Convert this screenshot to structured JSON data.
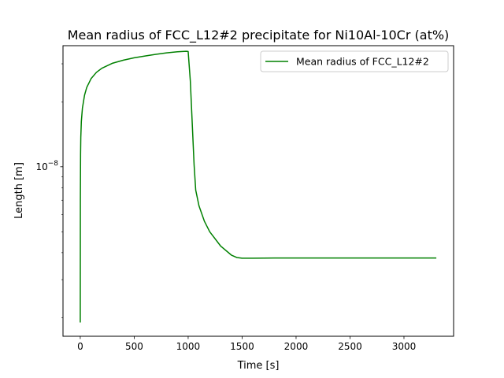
{
  "chart_data": {
    "type": "line",
    "title": "Mean radius of FCC_L12#2 precipitate for Ni10Al-10Cr (at%)",
    "xlabel": "Time [s]",
    "ylabel": "Length [m]",
    "xlim": [
      -160,
      3460
    ],
    "ylim": [
      1.64e-09,
      3.64e-08
    ],
    "yscale": "log",
    "x_ticks": [
      0,
      500,
      1000,
      1500,
      2000,
      2500,
      3000
    ],
    "x_tick_labels": [
      "0",
      "500",
      "1000",
      "1500",
      "2000",
      "2500",
      "3000"
    ],
    "y_major_ticks": [
      1e-08
    ],
    "y_tick_label_base": "10",
    "y_tick_label_exp": "−8",
    "y_minor_ticks": [
      2e-09,
      3e-09,
      4e-09,
      5e-09,
      6e-09,
      7e-09,
      8e-09,
      9e-09,
      2e-08,
      3e-08
    ],
    "grid": false,
    "legend_position": "upper right",
    "series": [
      {
        "name": "Mean radius of FCC_L12#2",
        "color": "#008000",
        "x": [
          0,
          1,
          3,
          5,
          10,
          20,
          40,
          60,
          100,
          150,
          200,
          300,
          400,
          500,
          600,
          700,
          800,
          900,
          980,
          1000,
          1020,
          1040,
          1055,
          1070,
          1100,
          1150,
          1200,
          1300,
          1400,
          1450,
          1500,
          1600,
          1800,
          2000,
          2500,
          3000,
          3300
        ],
        "y": [
          1.9e-09,
          7e-09,
          1.15e-08,
          1.37e-08,
          1.62e-08,
          1.87e-08,
          2.15e-08,
          2.33e-08,
          2.56e-08,
          2.74e-08,
          2.86e-08,
          3.02e-08,
          3.12e-08,
          3.2e-08,
          3.26e-08,
          3.32e-08,
          3.37e-08,
          3.41e-08,
          3.43e-08,
          3.42e-08,
          2.5e-08,
          1.5e-08,
          1.02e-08,
          7.8e-09,
          6.6e-09,
          5.6e-09,
          5e-09,
          4.3e-09,
          3.9e-09,
          3.8e-09,
          3.77e-09,
          3.77e-09,
          3.78e-09,
          3.78e-09,
          3.78e-09,
          3.78e-09,
          3.78e-09
        ]
      }
    ]
  }
}
